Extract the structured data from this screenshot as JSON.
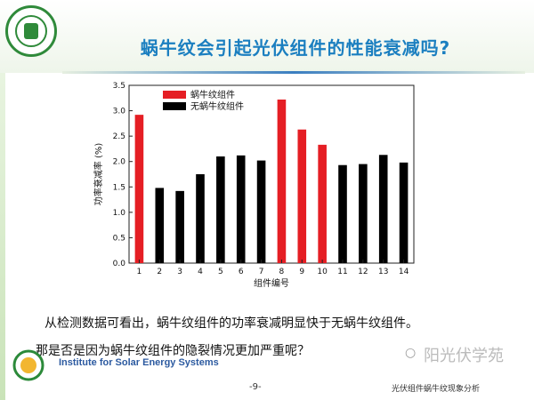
{
  "slide": {
    "title": "蜗牛纹会引起光伏组件的性能衰减吗?",
    "line1": "从检测数据可看出，蜗牛纹组件的功率衰减明显快于无蜗牛纹组件。",
    "line2": "那是否是因为蜗牛纹组件的隐裂情况更加严重呢？",
    "ises_label": "Institute for Solar Energy Systems",
    "page_number": "-9-",
    "footer_text": "光伏组件蜗牛纹现象分析",
    "watermark": "阳光伏学苑"
  },
  "colors": {
    "snail": "#e51e24",
    "no_snail": "#000000",
    "title": "#1b7fc0"
  },
  "chart_data": {
    "type": "bar",
    "categories": [
      "1",
      "2",
      "3",
      "4",
      "5",
      "6",
      "7",
      "8",
      "9",
      "10",
      "11",
      "12",
      "13",
      "14"
    ],
    "values": [
      2.92,
      1.48,
      1.42,
      1.75,
      2.1,
      2.12,
      2.02,
      3.22,
      2.63,
      2.33,
      1.93,
      1.95,
      2.13,
      1.98
    ],
    "series_index": [
      0,
      1,
      1,
      1,
      1,
      1,
      1,
      0,
      0,
      0,
      1,
      1,
      1,
      1
    ],
    "series": [
      {
        "name": "蜗牛纹组件",
        "color": "#e51e24"
      },
      {
        "name": "无蜗牛纹组件",
        "color": "#000000"
      }
    ],
    "xlabel": "组件编号",
    "ylabel": "功率衰减率 (%)",
    "yticks": [
      "0.0",
      "0.5",
      "1.0",
      "1.5",
      "2.0",
      "2.5",
      "3.0",
      "3.5"
    ],
    "ylim": [
      0,
      3.5
    ],
    "legend_position": "top-left",
    "grid": false
  }
}
